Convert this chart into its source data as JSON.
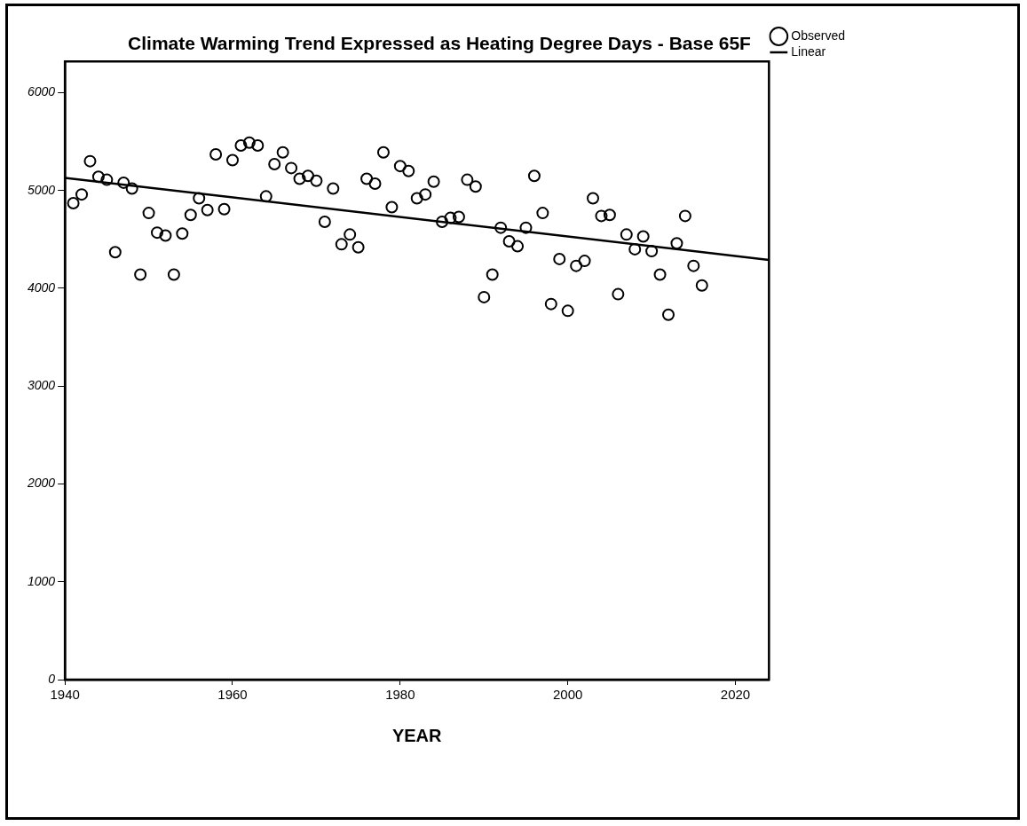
{
  "chart_data": {
    "type": "scatter",
    "title": "Climate Warming Trend Expressed as Heating Degree Days - Base 65F",
    "xlabel": "YEAR",
    "xlim": [
      1940,
      2024
    ],
    "xticks": [
      1940,
      1960,
      1980,
      2000,
      2020
    ],
    "ylim": [
      0,
      6320
    ],
    "yticks": [
      0,
      1000,
      2000,
      3000,
      4000,
      5000,
      6000
    ],
    "grid": false,
    "legend": "top right",
    "series": [
      {
        "name": "Observed",
        "marker": "circle",
        "color": "#000000",
        "x": [
          1941,
          1942,
          1943,
          1944,
          1945,
          1946,
          1947,
          1948,
          1949,
          1950,
          1951,
          1952,
          1953,
          1954,
          1955,
          1956,
          1957,
          1958,
          1959,
          1960,
          1961,
          1962,
          1963,
          1964,
          1965,
          1966,
          1967,
          1968,
          1969,
          1970,
          1971,
          1972,
          1973,
          1974,
          1975,
          1976,
          1977,
          1978,
          1979,
          1980,
          1981,
          1982,
          1983,
          1984,
          1985,
          1986,
          1987,
          1988,
          1989,
          1990,
          1991,
          1992,
          1993,
          1994,
          1995,
          1996,
          1997,
          1998,
          1999,
          2000,
          2001,
          2002,
          2003,
          2004,
          2005,
          2006,
          2007,
          2008,
          2009,
          2010,
          2011,
          2012,
          2013,
          2014,
          2015,
          2016
        ],
        "values": [
          4870,
          4960,
          5300,
          5140,
          5110,
          4370,
          5080,
          5020,
          4140,
          4770,
          4570,
          4540,
          4140,
          4560,
          4750,
          4920,
          4800,
          5370,
          4810,
          5310,
          5460,
          5490,
          5460,
          4940,
          5270,
          5390,
          5230,
          5120,
          5150,
          5100,
          4680,
          5020,
          4450,
          4550,
          4420,
          5120,
          5070,
          5390,
          4830,
          5250,
          5200,
          4920,
          4960,
          5090,
          4680,
          4720,
          4730,
          5110,
          5040,
          3910,
          4140,
          4620,
          4480,
          4430,
          4620,
          5150,
          4770,
          3840,
          4300,
          3770,
          4230,
          4280,
          4920,
          4740,
          4750,
          3940,
          4550,
          4400,
          4530,
          4380,
          4140,
          3730,
          4460,
          4740,
          4230,
          4030
        ]
      },
      {
        "name": "Linear",
        "type": "line",
        "color": "#000000",
        "line_style": "solid",
        "x": [
          1940,
          2024
        ],
        "values": [
          5130,
          4290
        ]
      }
    ]
  }
}
